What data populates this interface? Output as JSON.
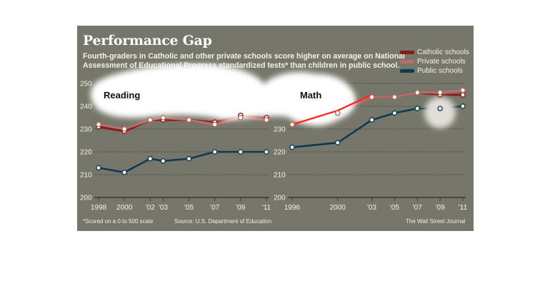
{
  "header": {
    "title": "Performance Gap",
    "subtitle_line1": "Fourth-graders in Catholic and other private schools score higher on average on National",
    "subtitle_line2": "Assessment of Educational Progress standardized tests* than children in public school."
  },
  "legend": [
    {
      "label": "Catholic schools",
      "color": "#8b1a14"
    },
    {
      "label": "Private schools",
      "color": "#b86e6a"
    },
    {
      "label": "Public schools",
      "color": "#0e3a52"
    }
  ],
  "footer": {
    "note": "*Scored on a 0 to 500 scale",
    "source": "Source: U.S. Department of Education",
    "credit": "The Wall Street Journal"
  },
  "chart_data": [
    {
      "type": "line",
      "title": "Reading",
      "ylim": [
        200,
        250
      ],
      "yticks": [
        200,
        210,
        220,
        230,
        240,
        250
      ],
      "x": [
        1998,
        2000,
        2002,
        2003,
        2005,
        2007,
        2009,
        2011
      ],
      "xlim": [
        1998,
        2011
      ],
      "xtick_labels": [
        "1998",
        "2000",
        "'02",
        "'03",
        "'05",
        "'07",
        "'09",
        "'11"
      ],
      "series": [
        {
          "name": "Catholic schools",
          "color": "#8b1a14",
          "values": [
            231,
            229,
            234,
            234,
            234,
            233,
            236,
            235
          ]
        },
        {
          "name": "Private schools",
          "color": "#b86e6a",
          "values": [
            232,
            230,
            234,
            235,
            234,
            232,
            235,
            234
          ]
        },
        {
          "name": "Public schools",
          "color": "#0e3a52",
          "values": [
            213,
            211,
            217,
            216,
            217,
            220,
            220,
            220
          ]
        }
      ]
    },
    {
      "type": "line",
      "title": "Math",
      "ylim": [
        200,
        250
      ],
      "yticks": [
        200,
        210,
        220,
        230,
        240,
        250
      ],
      "x": [
        1996,
        2000,
        2003,
        2005,
        2007,
        2009,
        2011
      ],
      "xlim": [
        1996,
        2011
      ],
      "xtick_labels": [
        "1996",
        "2000",
        "'03",
        "'05",
        "'07",
        "'09",
        "'11"
      ],
      "series": [
        {
          "name": "Catholic schools",
          "color": "#8b1a14",
          "values": [
            232,
            237,
            244,
            244,
            246,
            245,
            245
          ]
        },
        {
          "name": "Private schools",
          "color": "#b86e6a",
          "values": [
            232,
            237,
            244,
            244,
            246,
            246,
            247
          ]
        },
        {
          "name": "Public schools",
          "color": "#0e3a52",
          "values": [
            222,
            224,
            234,
            237,
            239,
            239,
            240
          ]
        }
      ]
    }
  ]
}
